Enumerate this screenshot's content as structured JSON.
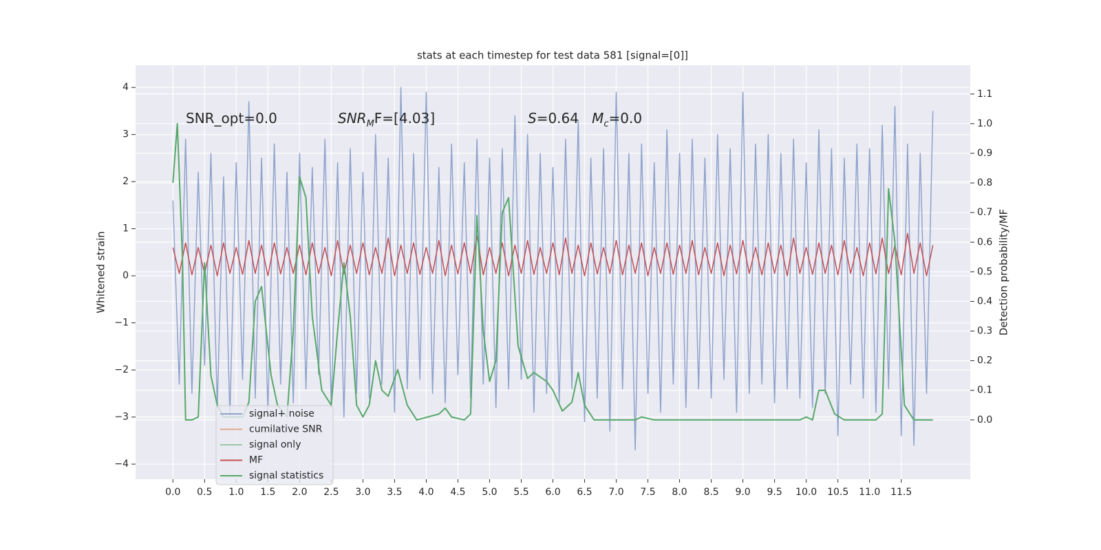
{
  "chart_data": {
    "type": "line",
    "title": "stats at each timestep for test data 581 [signal=[0]]",
    "y_label": "Whitened strain",
    "y2_label": "Detection probability/MF",
    "annotations": [
      [
        {
          "text": "SNR_opt=0.0",
          "style": "normal"
        }
      ],
      [
        {
          "text": "SNR",
          "style": "italic"
        },
        {
          "text": "M",
          "style": "sub"
        },
        {
          "text": "F=[4.03]",
          "style": "normal"
        }
      ],
      [
        {
          "text": "S",
          "style": "italic"
        },
        {
          "text": "=0.64   ",
          "style": "normal"
        },
        {
          "text": "M",
          "style": "italic"
        },
        {
          "text": "c",
          "style": "sub"
        },
        {
          "text": "=0.0",
          "style": "normal"
        }
      ]
    ],
    "xlim": [
      -0.59,
      12.59
    ],
    "ylim": [
      -4.32,
      4.47
    ],
    "y2lim": [
      -0.2,
      1.197
    ],
    "xticks": [
      {
        "value": 0,
        "label": "0.0"
      },
      0.5,
      {
        "value": 1,
        "label": "1.0"
      },
      1.5,
      {
        "value": 2,
        "label": "2.0"
      },
      2.5,
      {
        "value": 3,
        "label": "3.0"
      },
      3.5,
      {
        "value": 4,
        "label": "4.0"
      },
      4.5,
      {
        "value": 5,
        "label": "5.0"
      },
      5.5,
      {
        "value": 6,
        "label": "6.0"
      },
      6.5,
      {
        "value": 7,
        "label": "7.0"
      },
      7.5,
      {
        "value": 8,
        "label": "8.0"
      },
      8.5,
      {
        "value": 9,
        "label": "9.0"
      },
      9.5,
      {
        "value": 10,
        "label": "10.0"
      },
      10.5,
      {
        "value": 11,
        "label": "11.0"
      },
      11.5
    ],
    "yticks": [
      {
        "value": -4,
        "label": "−4"
      },
      {
        "value": -3,
        "label": "−3"
      },
      {
        "value": -2,
        "label": "−2"
      },
      {
        "value": -1,
        "label": "−1"
      },
      0,
      1,
      2,
      3,
      4
    ],
    "y2ticks": [
      {
        "value": 0,
        "label": "0.0"
      },
      0.1,
      0.2,
      0.3,
      0.4,
      0.5,
      0.6,
      0.7,
      0.8,
      0.9,
      {
        "value": 1,
        "label": "1.0"
      },
      1.1
    ],
    "grid": true,
    "legend_position": "lower left",
    "legend": [
      {
        "name": "signal+ noise",
        "color": "#8ea3cc"
      },
      {
        "name": "cumilative SNR",
        "color": "#e0a98a"
      },
      {
        "name": "signal only",
        "color": "#9bc7a3"
      },
      {
        "name": "MF",
        "color": "#c44e52"
      },
      {
        "name": "signal statistics",
        "color": "#55a868"
      }
    ],
    "x": [
      0,
      0.1,
      0.2,
      0.3,
      0.4,
      0.5,
      0.6,
      0.7,
      0.8,
      0.9,
      1,
      1.1,
      1.2,
      1.3,
      1.4,
      1.5,
      1.6,
      1.7,
      1.8,
      1.9,
      2,
      2.1,
      2.2,
      2.3,
      2.4,
      2.5,
      2.6,
      2.7,
      2.8,
      2.9,
      3,
      3.1,
      3.2,
      3.3,
      3.4,
      3.5,
      3.6,
      3.7,
      3.8,
      3.9,
      4,
      4.1,
      4.2,
      4.3,
      4.4,
      4.5,
      4.6,
      4.7,
      4.8,
      4.9,
      5,
      5.1,
      5.2,
      5.3,
      5.4,
      5.5,
      5.6,
      5.7,
      5.8,
      5.9,
      6,
      6.1,
      6.2,
      6.3,
      6.4,
      6.5,
      6.6,
      6.7,
      6.8,
      6.9,
      7,
      7.1,
      7.2,
      7.3,
      7.4,
      7.5,
      7.6,
      7.7,
      7.8,
      7.9,
      8,
      8.1,
      8.2,
      8.3,
      8.4,
      8.5,
      8.6,
      8.7,
      8.8,
      8.9,
      9,
      9.1,
      9.2,
      9.3,
      9.4,
      9.5,
      9.6,
      9.7,
      9.8,
      9.9,
      10,
      10.1,
      10.2,
      10.3,
      10.4,
      10.5,
      10.6,
      10.7,
      10.8,
      10.9,
      11,
      11.1,
      11.2,
      11.3,
      11.4,
      11.5,
      11.6,
      11.7,
      11.8,
      11.9,
      12
    ],
    "series": [
      {
        "color": "#8ea3cc",
        "axis": "y",
        "values": [
          1.6,
          -2.3,
          2.9,
          -2.5,
          2.2,
          -1.9,
          2.6,
          -2.8,
          2.1,
          -3.0,
          2.4,
          -2.2,
          3.7,
          -2.6,
          2.5,
          -2.9,
          2.8,
          -2.3,
          2.2,
          -2.7,
          2.6,
          -2.4,
          2.3,
          -2.1,
          2.9,
          -2.8,
          2.4,
          -3.0,
          2.7,
          -2.5,
          2.2,
          -2.6,
          3.0,
          -2.3,
          2.5,
          -2.9,
          4.0,
          -2.4,
          2.6,
          -2.2,
          3.9,
          -2.5,
          2.3,
          -2.7,
          2.8,
          -2.1,
          2.4,
          -2.6,
          2.9,
          -2.3,
          2.5,
          -2.8,
          2.7,
          -2.4,
          3.4,
          -2.2,
          3.0,
          -2.9,
          2.6,
          -2.5,
          2.3,
          -2.7,
          2.9,
          -2.4,
          3.3,
          -3.1,
          2.5,
          -2.6,
          2.7,
          -3.3,
          3.9,
          -2.4,
          2.6,
          -3.7,
          2.8,
          -2.5,
          2.4,
          -2.9,
          3.1,
          -2.3,
          2.6,
          -2.8,
          2.9,
          -2.4,
          2.5,
          -2.6,
          3.0,
          -2.2,
          2.7,
          -2.9,
          3.9,
          -2.5,
          2.8,
          -2.3,
          3.0,
          -2.7,
          2.6,
          -2.4,
          2.9,
          -2.6,
          2.4,
          -2.8,
          3.1,
          -2.5,
          2.7,
          -3.4,
          2.5,
          -2.3,
          2.8,
          -2.6,
          2.7,
          -2.9,
          3.2,
          -2.4,
          3.6,
          -3.4,
          2.8,
          -3.6,
          2.6,
          -2.5,
          3.5
        ]
      },
      {
        "color": "#c44e52",
        "axis": "y",
        "values": [
          0.6,
          0.05,
          0.7,
          0.02,
          0.6,
          0.05,
          0.65,
          0.0,
          0.7,
          0.05,
          0.6,
          0.03,
          0.75,
          0.05,
          0.65,
          0.0,
          0.7,
          0.04,
          0.6,
          0.05,
          0.65,
          0.02,
          0.7,
          0.05,
          0.6,
          0.0,
          0.75,
          0.04,
          0.65,
          0.05,
          0.7,
          0.02,
          0.6,
          0.05,
          0.8,
          0.0,
          0.65,
          0.05,
          0.7,
          0.03,
          0.6,
          0.05,
          0.75,
          0.0,
          0.65,
          0.04,
          0.7,
          0.05,
          0.85,
          0.02,
          0.6,
          0.05,
          0.7,
          0.0,
          0.65,
          0.05,
          0.75,
          0.03,
          0.6,
          0.05,
          0.7,
          0.02,
          0.8,
          0.05,
          0.65,
          0.0,
          0.7,
          0.04,
          0.6,
          0.05,
          0.75,
          0.02,
          0.65,
          0.05,
          0.7,
          0.0,
          0.6,
          0.05,
          0.7,
          0.03,
          0.65,
          0.05,
          0.75,
          0.02,
          0.6,
          0.05,
          0.7,
          0.0,
          0.65,
          0.04,
          0.75,
          0.05,
          0.6,
          0.02,
          0.7,
          0.05,
          0.65,
          0.0,
          0.8,
          0.05,
          0.6,
          0.03,
          0.7,
          0.05,
          0.65,
          0.02,
          0.75,
          0.05,
          0.6,
          0.0,
          0.7,
          0.04,
          0.8,
          0.05,
          0.65,
          0.02,
          0.9,
          0.05,
          0.7,
          0.0,
          0.65
        ]
      },
      {
        "color": "#55a868",
        "axis": "y2",
        "x": [
          0,
          0.07,
          0.15,
          0.2,
          0.3,
          0.4,
          0.5,
          0.6,
          0.7,
          0.8,
          0.9,
          1.1,
          1.2,
          1.3,
          1.4,
          1.55,
          1.65,
          1.8,
          1.9,
          2.0,
          2.1,
          2.2,
          2.35,
          2.5,
          2.6,
          2.7,
          2.8,
          2.9,
          3.0,
          3.1,
          3.2,
          3.3,
          3.4,
          3.55,
          3.7,
          3.85,
          4.2,
          4.3,
          4.4,
          4.6,
          4.7,
          4.8,
          4.9,
          5.0,
          5.1,
          5.2,
          5.3,
          5.45,
          5.6,
          5.7,
          5.9,
          6.0,
          6.15,
          6.3,
          6.4,
          6.5,
          6.65,
          7.3,
          7.4,
          7.6,
          9.9,
          10.0,
          10.1,
          10.2,
          10.3,
          10.45,
          10.6,
          11.1,
          11.2,
          11.3,
          11.4,
          11.55,
          11.7,
          12.0
        ],
        "values": [
          0.8,
          1.0,
          0.55,
          0.0,
          0.0,
          0.01,
          0.53,
          0.15,
          0.05,
          0.01,
          0.01,
          0.01,
          0.06,
          0.4,
          0.45,
          0.15,
          0.05,
          0.01,
          0.3,
          0.82,
          0.75,
          0.35,
          0.1,
          0.05,
          0.3,
          0.53,
          0.35,
          0.05,
          0.01,
          0.05,
          0.2,
          0.1,
          0.08,
          0.17,
          0.05,
          0.0,
          0.02,
          0.04,
          0.01,
          0.0,
          0.02,
          0.69,
          0.3,
          0.13,
          0.2,
          0.7,
          0.75,
          0.25,
          0.14,
          0.16,
          0.13,
          0.1,
          0.03,
          0.06,
          0.16,
          0.05,
          0.0,
          0.0,
          0.01,
          0.0,
          0.0,
          0.01,
          0.0,
          0.1,
          0.1,
          0.02,
          0.0,
          0.0,
          0.02,
          0.78,
          0.6,
          0.05,
          0.0,
          0.0
        ]
      }
    ]
  }
}
